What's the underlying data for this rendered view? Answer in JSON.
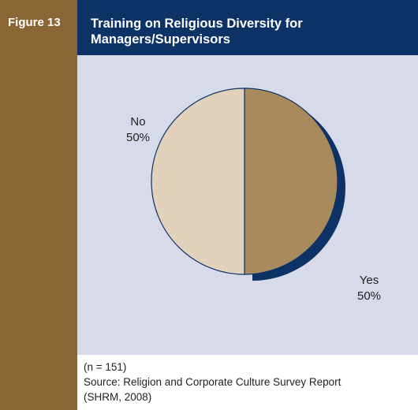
{
  "figure_label": "Figure 13",
  "title_lines": [
    "Training on Religious Diversity for",
    "Managers/Supervisors"
  ],
  "colors": {
    "sidebar": "#8a6634",
    "header": "#0d3366",
    "plot_background": "#d7dbe9",
    "yes_slice": "#a88a5d",
    "no_slice": "#e2d2bc",
    "shadow": "#0d3366"
  },
  "chart_data": {
    "type": "pie",
    "title": "Training on Religious Diversity for Managers/Supervisors",
    "slices": [
      {
        "label": "Yes",
        "value": 50,
        "value_text": "50%"
      },
      {
        "label": "No",
        "value": 50,
        "value_text": "50%"
      }
    ]
  },
  "footer": {
    "n_text": "(n = 151)",
    "source_line1": "Source: Religion and Corporate Culture Survey Report",
    "source_line2": "(SHRM, 2008)"
  }
}
